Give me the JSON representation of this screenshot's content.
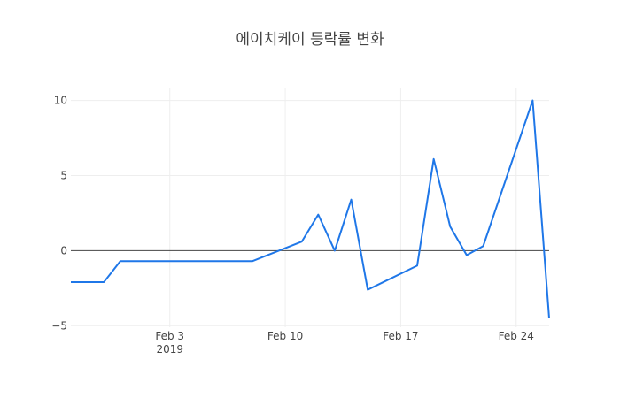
{
  "chart_data": {
    "type": "line",
    "title": "에이치케이 등락률 변화",
    "xlabel": "",
    "ylabel": "",
    "x_tick_labels": [
      "Feb 3",
      "Feb 10",
      "Feb 17",
      "Feb 24"
    ],
    "x_tick_year": "2019",
    "y_tick_labels": [
      "10",
      "5",
      "0",
      "−5"
    ],
    "ylim": [
      -5.1,
      10.8
    ],
    "xlim": [
      "2019-01-28",
      "2019-02-26"
    ],
    "grid": true,
    "line_color": "#1f77e8",
    "series": [
      {
        "x": [
          "2019-01-28",
          "2019-01-29",
          "2019-01-30",
          "2019-01-31",
          "2019-02-01",
          "2019-02-08",
          "2019-02-11",
          "2019-02-12",
          "2019-02-13",
          "2019-02-14",
          "2019-02-15",
          "2019-02-18",
          "2019-02-19",
          "2019-02-20",
          "2019-02-21",
          "2019-02-22",
          "2019-02-25",
          "2019-02-26"
        ],
        "values": [
          -2.1,
          -2.1,
          -2.1,
          -0.7,
          -0.7,
          -0.7,
          0.6,
          2.4,
          0.0,
          3.4,
          -2.6,
          -1.0,
          6.1,
          1.6,
          -0.3,
          0.3,
          10.0,
          -4.5
        ]
      }
    ]
  }
}
